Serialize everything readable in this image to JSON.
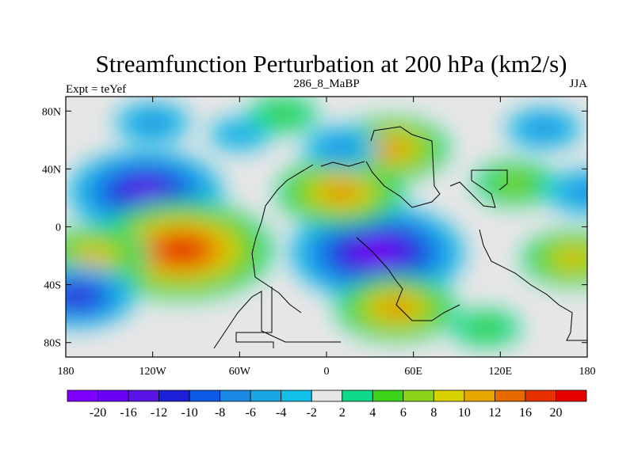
{
  "chart_data": {
    "type": "heatmap",
    "title": "Streamfunction Perturbation at 200 hPa (km2/s)",
    "left_string": "Expt = teYef",
    "center_string": "286_8_MaBP",
    "right_string": "JJA",
    "xlim": [
      -180,
      180
    ],
    "ylim": [
      -90,
      90
    ],
    "x_ticks": [
      {
        "value": -180,
        "label": "180"
      },
      {
        "value": -120,
        "label": "120W"
      },
      {
        "value": -60,
        "label": "60W"
      },
      {
        "value": 0,
        "label": "0"
      },
      {
        "value": 60,
        "label": "60E"
      },
      {
        "value": 120,
        "label": "120E"
      },
      {
        "value": 180,
        "label": "180"
      }
    ],
    "y_ticks": [
      {
        "value": 80,
        "label": "80N"
      },
      {
        "value": 40,
        "label": "40N"
      },
      {
        "value": 0,
        "label": "0"
      },
      {
        "value": -40,
        "label": "40S"
      },
      {
        "value": -80,
        "label": "80S"
      }
    ],
    "contour_levels": [
      -20,
      -16,
      -12,
      -10,
      -8,
      -6,
      -4,
      -2,
      2,
      4,
      6,
      8,
      10,
      12,
      16,
      20
    ],
    "colorbar_labels": [
      "-20",
      "-16",
      "-12",
      "-10",
      "-8",
      "-6",
      "-4",
      "-2",
      "2",
      "4",
      "6",
      "8",
      "10",
      "12",
      "16",
      "20"
    ],
    "colorbar_colors": [
      "#7f00ff",
      "#6a00f4",
      "#5a14e6",
      "#1b1fd6",
      "#0a5ae6",
      "#1c88e6",
      "#1aa6e6",
      "#13bfe6",
      "#e6e6e6",
      "#10d98c",
      "#3cd21a",
      "#8ed21c",
      "#d8d200",
      "#e6a800",
      "#e66a00",
      "#e63200",
      "#e60000"
    ],
    "field_features": [
      {
        "lon": -125,
        "lat": 24,
        "value": -18
      },
      {
        "lon": -100,
        "lat": -16,
        "value": 22
      },
      {
        "lon": -160,
        "lat": -20,
        "value": 11
      },
      {
        "lon": 35,
        "lat": -18,
        "value": -21
      },
      {
        "lon": 10,
        "lat": 24,
        "value": 14
      },
      {
        "lon": 45,
        "lat": 54,
        "value": 12
      },
      {
        "lon": 48,
        "lat": -56,
        "value": 13
      },
      {
        "lon": 10,
        "lat": 55,
        "value": -6
      },
      {
        "lon": -172,
        "lat": -48,
        "value": -12
      },
      {
        "lon": 170,
        "lat": -22,
        "value": 10
      },
      {
        "lon": 130,
        "lat": 30,
        "value": 7
      },
      {
        "lon": 150,
        "lat": 68,
        "value": -6
      },
      {
        "lon": -120,
        "lat": 72,
        "value": -6
      },
      {
        "lon": -60,
        "lat": 64,
        "value": -4
      },
      {
        "lon": 180,
        "lat": 24,
        "value": -7
      },
      {
        "lon": -30,
        "lat": 78,
        "value": 5
      },
      {
        "lon": 110,
        "lat": -70,
        "value": 5
      }
    ]
  }
}
